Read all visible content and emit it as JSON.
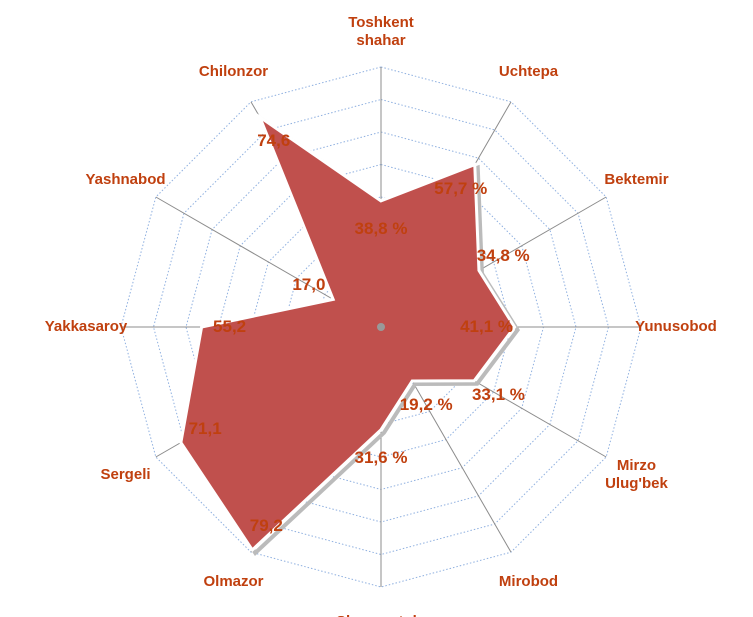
{
  "chart_data": {
    "type": "radar",
    "categories": [
      "Toshkent shahar",
      "Uchtepa",
      "Bektemir",
      "Yunusobod",
      "Mirzo Ulug'bek",
      "Mirobod",
      "Shayxontohur",
      "Olmazor",
      "Sergeli",
      "Yakkasaroy",
      "Yashnabod",
      "Chilonzor"
    ],
    "values": [
      38.8,
      57.7,
      34.8,
      41.1,
      33.1,
      19.2,
      31.6,
      79.2,
      71.1,
      55.2,
      17.0,
      74.6
    ],
    "value_labels": [
      "38,8 %",
      "57,7 %",
      "34,8 %",
      "41,1 %",
      "33,1 %",
      "19,2 %",
      "31,6 %",
      "79,2",
      "71,1",
      "55,2",
      "17,0",
      "74,6"
    ],
    "color": "#c0504d",
    "ylim": [
      0,
      80
    ],
    "yticks": [
      0,
      10,
      20,
      30,
      40,
      50,
      60,
      70,
      80
    ],
    "grid": true
  }
}
